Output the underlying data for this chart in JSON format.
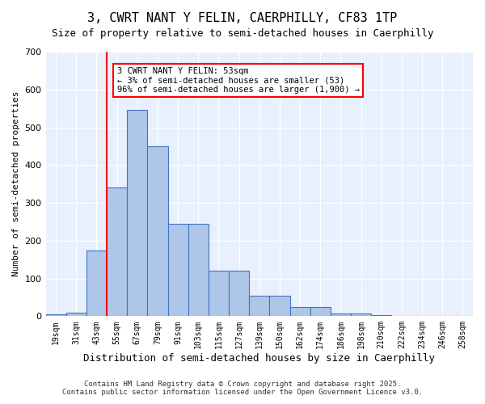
{
  "title": "3, CWRT NANT Y FELIN, CAERPHILLY, CF83 1TP",
  "subtitle": "Size of property relative to semi-detached houses in Caerphilly",
  "xlabel": "Distribution of semi-detached houses by size in Caerphilly",
  "ylabel": "Number of semi-detached properties",
  "bin_labels": [
    "19sqm",
    "31sqm",
    "43sqm",
    "55sqm",
    "67sqm",
    "79sqm",
    "91sqm",
    "103sqm",
    "115sqm",
    "127sqm",
    "139sqm",
    "150sqm",
    "162sqm",
    "174sqm",
    "186sqm",
    "198sqm",
    "210sqm",
    "222sqm",
    "234sqm",
    "246sqm",
    "258sqm"
  ],
  "bar_values": [
    5,
    10,
    175,
    340,
    545,
    450,
    245,
    245,
    120,
    120,
    55,
    55,
    25,
    25,
    8,
    8,
    2,
    0,
    0,
    0,
    0
  ],
  "bar_color": "#aec6e8",
  "bar_edge_color": "#4472c4",
  "vline_x": 2,
  "vline_color": "red",
  "annotation_text": "3 CWRT NANT Y FELIN: 53sqm\n← 3% of semi-detached houses are smaller (53)\n96% of semi-detached houses are larger (1,900) →",
  "annotation_box_color": "white",
  "annotation_box_edge": "red",
  "ylim": [
    0,
    700
  ],
  "yticks": [
    0,
    100,
    200,
    300,
    400,
    500,
    600,
    700
  ],
  "bg_color": "#e8f0fe",
  "footer_line1": "Contains HM Land Registry data © Crown copyright and database right 2025.",
  "footer_line2": "Contains public sector information licensed under the Open Government Licence v3.0."
}
